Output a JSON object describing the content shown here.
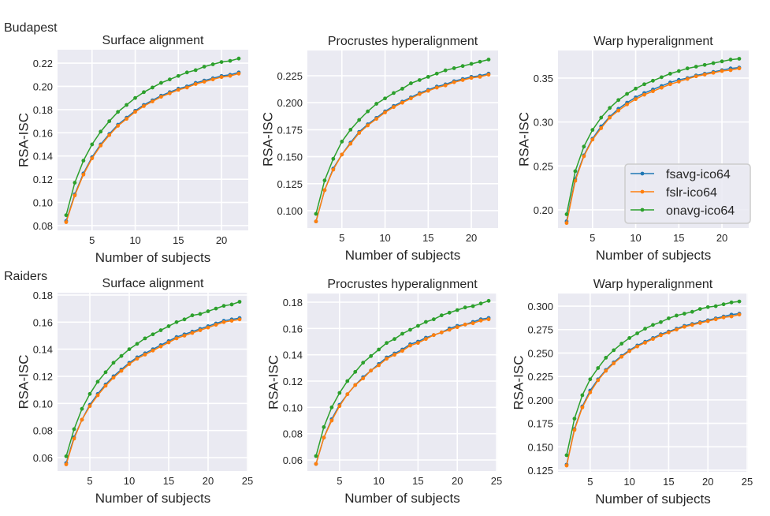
{
  "row_labels": [
    "Budapest",
    "Raiders"
  ],
  "colors": {
    "fsavg-ico64": "#1f77b4",
    "fslr-ico64": "#ff7f0e",
    "onavg-ico64": "#2ca02c",
    "background": "#EAEAF2",
    "grid": "#ffffff"
  },
  "legend": {
    "placement": "lower-right",
    "panel": 2,
    "entries": [
      "fsavg-ico64",
      "fslr-ico64",
      "onavg-ico64"
    ]
  },
  "chart_data": [
    {
      "type": "line",
      "title": "Surface alignment",
      "xlabel": "Number of subjects",
      "ylabel": "RSA-ISC",
      "xlim": [
        1,
        23.1
      ],
      "ylim": [
        0.0759,
        0.2316
      ],
      "grid": true,
      "xticks": [
        "5",
        "10",
        "15",
        "20"
      ],
      "yticks": [
        "0.08",
        "0.10",
        "0.12",
        "0.14",
        "0.16",
        "0.18",
        "0.20",
        "0.22"
      ],
      "x": [
        2,
        3,
        4,
        5,
        6,
        7,
        8,
        9,
        10,
        11,
        12,
        13,
        14,
        15,
        16,
        17,
        18,
        19,
        20,
        21,
        22
      ],
      "series": [
        {
          "name": "fsavg-ico64",
          "values": [
            0.084,
            0.107,
            0.125,
            0.139,
            0.15,
            0.159,
            0.167,
            0.173,
            0.179,
            0.184,
            0.188,
            0.192,
            0.195,
            0.198,
            0.2,
            0.203,
            0.205,
            0.207,
            0.209,
            0.21,
            0.212
          ]
        },
        {
          "name": "fslr-ico64",
          "values": [
            0.083,
            0.106,
            0.124,
            0.138,
            0.149,
            0.158,
            0.166,
            0.172,
            0.178,
            0.183,
            0.187,
            0.191,
            0.194,
            0.197,
            0.199,
            0.202,
            0.204,
            0.206,
            0.208,
            0.209,
            0.211
          ]
        },
        {
          "name": "onavg-ico64",
          "values": [
            0.089,
            0.117,
            0.136,
            0.15,
            0.161,
            0.17,
            0.178,
            0.184,
            0.19,
            0.195,
            0.199,
            0.203,
            0.206,
            0.209,
            0.212,
            0.214,
            0.217,
            0.219,
            0.221,
            0.222,
            0.224
          ]
        }
      ]
    },
    {
      "type": "line",
      "title": "Procrustes hyperalignment",
      "xlabel": "Number of subjects",
      "ylabel": "RSA-ISC",
      "xlim": [
        1,
        23.1
      ],
      "ylim": [
        0.0839,
        0.2484
      ],
      "grid": true,
      "xticks": [
        "5",
        "10",
        "15",
        "20"
      ],
      "yticks": [
        "0.100",
        "0.125",
        "0.150",
        "0.175",
        "0.200",
        "0.225"
      ],
      "x": [
        2,
        3,
        4,
        5,
        6,
        7,
        8,
        9,
        10,
        11,
        12,
        13,
        14,
        15,
        16,
        17,
        18,
        19,
        20,
        21,
        22
      ],
      "series": [
        {
          "name": "fsavg-ico64",
          "values": [
            0.09,
            0.119,
            0.139,
            0.152,
            0.163,
            0.173,
            0.18,
            0.186,
            0.192,
            0.197,
            0.201,
            0.205,
            0.209,
            0.212,
            0.215,
            0.217,
            0.22,
            0.222,
            0.224,
            0.225,
            0.227
          ]
        },
        {
          "name": "fslr-ico64",
          "values": [
            0.09,
            0.119,
            0.138,
            0.152,
            0.162,
            0.172,
            0.179,
            0.185,
            0.191,
            0.196,
            0.2,
            0.204,
            0.208,
            0.211,
            0.214,
            0.216,
            0.219,
            0.221,
            0.223,
            0.224,
            0.226
          ]
        },
        {
          "name": "onavg-ico64",
          "values": [
            0.097,
            0.128,
            0.148,
            0.164,
            0.175,
            0.184,
            0.192,
            0.199,
            0.204,
            0.209,
            0.213,
            0.218,
            0.221,
            0.224,
            0.227,
            0.23,
            0.232,
            0.234,
            0.236,
            0.238,
            0.24
          ]
        }
      ]
    },
    {
      "type": "line",
      "title": "Warp hyperalignment",
      "xlabel": "Number of subjects",
      "ylabel": "RSA-ISC",
      "xlim": [
        1,
        23.1
      ],
      "ylim": [
        0.1793,
        0.3814
      ],
      "grid": true,
      "xticks": [
        "5",
        "10",
        "15",
        "20"
      ],
      "yticks": [
        "0.20",
        "0.25",
        "0.30",
        "0.35"
      ],
      "x": [
        2,
        3,
        4,
        5,
        6,
        7,
        8,
        9,
        10,
        11,
        12,
        13,
        14,
        15,
        16,
        17,
        18,
        19,
        20,
        21,
        22
      ],
      "series": [
        {
          "name": "fsavg-ico64",
          "values": [
            0.187,
            0.235,
            0.262,
            0.281,
            0.295,
            0.306,
            0.315,
            0.322,
            0.328,
            0.333,
            0.337,
            0.341,
            0.345,
            0.348,
            0.35,
            0.353,
            0.355,
            0.357,
            0.359,
            0.361,
            0.362
          ]
        },
        {
          "name": "fslr-ico64",
          "values": [
            0.185,
            0.233,
            0.261,
            0.28,
            0.293,
            0.305,
            0.313,
            0.32,
            0.326,
            0.331,
            0.335,
            0.339,
            0.343,
            0.346,
            0.349,
            0.352,
            0.354,
            0.356,
            0.358,
            0.359,
            0.361
          ]
        },
        {
          "name": "onavg-ico64",
          "values": [
            0.195,
            0.244,
            0.272,
            0.291,
            0.305,
            0.316,
            0.325,
            0.332,
            0.338,
            0.343,
            0.347,
            0.351,
            0.355,
            0.358,
            0.361,
            0.363,
            0.365,
            0.367,
            0.369,
            0.371,
            0.372
          ]
        }
      ]
    },
    {
      "type": "line",
      "title": "Surface alignment",
      "xlabel": "Number of subjects",
      "ylabel": "RSA-ISC",
      "xlim": [
        0.9,
        25.1
      ],
      "ylim": [
        0.0501,
        0.1817
      ],
      "grid": true,
      "xticks": [
        "5",
        "10",
        "15",
        "20",
        "25"
      ],
      "yticks": [
        "0.06",
        "0.08",
        "0.10",
        "0.12",
        "0.14",
        "0.16",
        "0.18"
      ],
      "x": [
        2,
        3,
        4,
        5,
        6,
        7,
        8,
        9,
        10,
        11,
        12,
        13,
        14,
        15,
        16,
        17,
        18,
        19,
        20,
        21,
        22,
        23,
        24
      ],
      "series": [
        {
          "name": "fsavg-ico64",
          "values": [
            0.056,
            0.075,
            0.088,
            0.099,
            0.107,
            0.114,
            0.12,
            0.125,
            0.13,
            0.134,
            0.137,
            0.14,
            0.143,
            0.146,
            0.149,
            0.151,
            0.153,
            0.155,
            0.157,
            0.159,
            0.161,
            0.162,
            0.163
          ]
        },
        {
          "name": "fslr-ico64",
          "values": [
            0.055,
            0.074,
            0.088,
            0.098,
            0.106,
            0.113,
            0.119,
            0.124,
            0.129,
            0.133,
            0.136,
            0.139,
            0.142,
            0.145,
            0.148,
            0.15,
            0.152,
            0.154,
            0.156,
            0.158,
            0.16,
            0.161,
            0.162
          ]
        },
        {
          "name": "onavg-ico64",
          "values": [
            0.061,
            0.081,
            0.096,
            0.107,
            0.116,
            0.123,
            0.13,
            0.135,
            0.14,
            0.144,
            0.148,
            0.151,
            0.154,
            0.157,
            0.16,
            0.162,
            0.165,
            0.166,
            0.168,
            0.17,
            0.172,
            0.173,
            0.175
          ]
        }
      ]
    },
    {
      "type": "line",
      "title": "Procrustes hyperalignment",
      "xlabel": "Number of subjects",
      "ylabel": "RSA-ISC",
      "xlim": [
        0.9,
        25.1
      ],
      "ylim": [
        0.0516,
        0.1866
      ],
      "grid": true,
      "xticks": [
        "5",
        "10",
        "15",
        "20",
        "25"
      ],
      "yticks": [
        "0.06",
        "0.08",
        "0.10",
        "0.12",
        "0.14",
        "0.16",
        "0.18"
      ],
      "x": [
        2,
        3,
        4,
        5,
        6,
        7,
        8,
        9,
        10,
        11,
        12,
        13,
        14,
        15,
        16,
        17,
        18,
        19,
        20,
        21,
        22,
        23,
        24
      ],
      "series": [
        {
          "name": "fsavg-ico64",
          "values": [
            0.057,
            0.077,
            0.091,
            0.102,
            0.11,
            0.117,
            0.123,
            0.128,
            0.133,
            0.138,
            0.141,
            0.144,
            0.148,
            0.15,
            0.153,
            0.155,
            0.157,
            0.16,
            0.162,
            0.163,
            0.165,
            0.167,
            0.168
          ]
        },
        {
          "name": "fslr-ico64",
          "values": [
            0.057,
            0.077,
            0.09,
            0.101,
            0.11,
            0.117,
            0.122,
            0.128,
            0.132,
            0.137,
            0.14,
            0.143,
            0.147,
            0.149,
            0.152,
            0.155,
            0.157,
            0.159,
            0.161,
            0.163,
            0.164,
            0.166,
            0.167
          ]
        },
        {
          "name": "onavg-ico64",
          "values": [
            0.063,
            0.085,
            0.1,
            0.111,
            0.12,
            0.127,
            0.134,
            0.139,
            0.144,
            0.149,
            0.152,
            0.156,
            0.159,
            0.162,
            0.165,
            0.167,
            0.17,
            0.172,
            0.174,
            0.176,
            0.177,
            0.179,
            0.181
          ]
        }
      ]
    },
    {
      "type": "line",
      "title": "Warp hyperalignment",
      "xlabel": "Number of subjects",
      "ylabel": "RSA-ISC",
      "xlim": [
        0.9,
        25.1
      ],
      "ylim": [
        0.1233,
        0.3135
      ],
      "grid": true,
      "xticks": [
        "5",
        "10",
        "15",
        "20",
        "25"
      ],
      "yticks": [
        "0.125",
        "0.150",
        "0.175",
        "0.200",
        "0.225",
        "0.250",
        "0.275",
        "0.300"
      ],
      "x": [
        2,
        3,
        4,
        5,
        6,
        7,
        8,
        9,
        10,
        11,
        12,
        13,
        14,
        15,
        16,
        17,
        18,
        19,
        20,
        21,
        22,
        23,
        24
      ],
      "series": [
        {
          "name": "fsavg-ico64",
          "values": [
            0.131,
            0.169,
            0.193,
            0.21,
            0.222,
            0.232,
            0.24,
            0.247,
            0.253,
            0.258,
            0.262,
            0.266,
            0.27,
            0.273,
            0.276,
            0.279,
            0.281,
            0.283,
            0.285,
            0.287,
            0.289,
            0.291,
            0.292
          ]
        },
        {
          "name": "fslr-ico64",
          "values": [
            0.13,
            0.168,
            0.192,
            0.208,
            0.221,
            0.231,
            0.239,
            0.246,
            0.252,
            0.257,
            0.261,
            0.265,
            0.269,
            0.272,
            0.275,
            0.278,
            0.28,
            0.282,
            0.284,
            0.286,
            0.288,
            0.289,
            0.291
          ]
        },
        {
          "name": "onavg-ico64",
          "values": [
            0.141,
            0.18,
            0.205,
            0.222,
            0.234,
            0.245,
            0.253,
            0.26,
            0.266,
            0.271,
            0.276,
            0.28,
            0.283,
            0.287,
            0.29,
            0.292,
            0.294,
            0.297,
            0.299,
            0.3,
            0.302,
            0.304,
            0.305
          ]
        }
      ]
    }
  ]
}
